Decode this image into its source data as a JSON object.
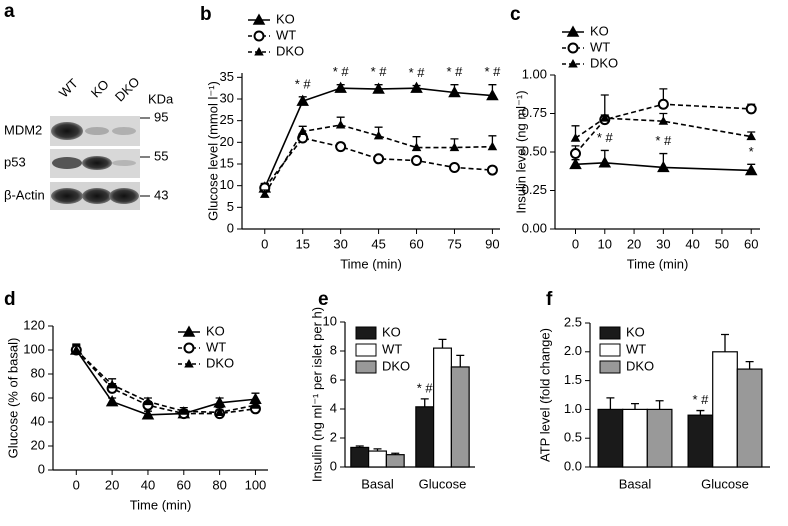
{
  "blot": {
    "panel_label": "a",
    "lanes": [
      "WT",
      "KO",
      "DKO"
    ],
    "unit": "KDa",
    "rows": [
      {
        "name": "MDM2",
        "size": "95"
      },
      {
        "name": "p53",
        "size": "55"
      },
      {
        "name": "β-Actin",
        "size": "43"
      }
    ]
  },
  "chart_data": [
    {
      "type": "line",
      "panel_label": "b",
      "x_label": "Time (min)",
      "y_label": "Glucose level (mmol l⁻¹)",
      "x": [
        0,
        15,
        30,
        45,
        60,
        75,
        90
      ],
      "xlim": [
        -9,
        93
      ],
      "xticks": [
        0,
        15,
        30,
        45,
        60,
        75,
        90
      ],
      "ylim": [
        0,
        36
      ],
      "yticks": [
        0,
        5,
        10,
        15,
        20,
        25,
        30,
        35
      ],
      "series": [
        {
          "name": "KO",
          "color": "#000000",
          "marker": "triangle",
          "dash": false,
          "values": [
            9.5,
            29.5,
            32.5,
            32.3,
            32.5,
            31.5,
            30.8
          ],
          "errors": [
            1,
            1,
            0.8,
            1,
            0.6,
            1.8,
            2.5
          ],
          "annotations": [
            null,
            "* #",
            "* #",
            "* #",
            "* #",
            "* #",
            "* #"
          ]
        },
        {
          "name": "WT",
          "color": "#000000",
          "marker": "circle",
          "dash": true,
          "values": [
            9.5,
            21,
            19,
            16.2,
            15.8,
            14.2,
            13.6
          ],
          "errors": [
            1,
            1,
            0.8,
            0.7,
            0.6,
            0.5,
            0.8
          ]
        },
        {
          "name": "DKO",
          "color": "#000000",
          "marker": "small-triangle",
          "dash": true,
          "values": [
            8,
            22.5,
            24,
            21.5,
            18.8,
            18.8,
            19
          ],
          "errors": [
            1,
            1.2,
            1.8,
            2,
            2.5,
            2,
            2.5
          ]
        }
      ]
    },
    {
      "type": "line",
      "panel_label": "c",
      "x_label": "Time (min)",
      "y_label": "Insulin level (ng ml⁻¹)",
      "x": [
        0,
        10,
        30,
        60
      ],
      "xlim": [
        -7,
        63
      ],
      "xticks": [
        0,
        10,
        20,
        30,
        40,
        50,
        60
      ],
      "ylim": [
        0,
        1
      ],
      "yticks": [
        {
          "value": 0,
          "label": "0.00"
        },
        0.25,
        {
          "value": 0.5,
          "label": "0.50"
        },
        0.75,
        {
          "value": 1,
          "label": "1.00"
        }
      ],
      "series": [
        {
          "name": "KO",
          "color": "#000000",
          "marker": "triangle",
          "dash": false,
          "values": [
            0.42,
            0.43,
            0.4,
            0.38
          ],
          "errors": [
            0.03,
            0.08,
            0.09,
            0.04
          ],
          "annotations": [
            null,
            "* #",
            "* #",
            "*"
          ]
        },
        {
          "name": "WT",
          "color": "#000000",
          "marker": "circle",
          "dash": true,
          "values": [
            0.49,
            0.71,
            0.81,
            0.78
          ],
          "errors": [
            0.05,
            0.03,
            0.1,
            0.03
          ]
        },
        {
          "name": "DKO",
          "color": "#000000",
          "marker": "small-triangle",
          "dash": true,
          "values": [
            0.59,
            0.72,
            0.7,
            0.6
          ],
          "errors": [
            0.08,
            0.15,
            0.05,
            0.03
          ]
        }
      ]
    },
    {
      "type": "line",
      "panel_label": "d",
      "x_label": "Time (min)",
      "y_label": "Glucose (% of basal)",
      "x": [
        0,
        20,
        40,
        60,
        80,
        100
      ],
      "xlim": [
        -13,
        107
      ],
      "xticks": [
        0,
        20,
        40,
        60,
        80,
        100
      ],
      "ylim": [
        0,
        120
      ],
      "yticks": [
        0,
        20,
        40,
        60,
        80,
        100,
        120
      ],
      "series": [
        {
          "name": "KO",
          "color": "#000000",
          "marker": "triangle",
          "dash": false,
          "values": [
            100,
            57,
            46,
            47,
            56,
            59
          ],
          "errors": [
            5,
            3,
            3,
            3,
            4,
            5
          ]
        },
        {
          "name": "WT",
          "color": "#000000",
          "marker": "circle",
          "dash": true,
          "values": [
            100,
            68,
            54,
            47,
            47,
            51
          ],
          "errors": [
            4,
            4,
            3,
            3,
            3,
            3
          ]
        },
        {
          "name": "DKO",
          "color": "#000000",
          "marker": "small-triangle",
          "dash": true,
          "values": [
            100,
            71,
            57,
            49,
            48,
            54
          ],
          "errors": [
            4,
            5,
            3,
            3,
            4,
            4
          ]
        }
      ]
    },
    {
      "type": "bar",
      "panel_label": "e",
      "y_label": "Insulin (ng ml⁻¹ per islet per h)",
      "categories": [
        "Basal",
        "Glucose"
      ],
      "ylim": [
        0,
        10
      ],
      "yticks": [
        0,
        2,
        4,
        6,
        8,
        10
      ],
      "series": [
        {
          "name": "KO",
          "color": "#1a1a1a",
          "values": [
            1.35,
            4.15
          ],
          "errors": [
            0.1,
            0.55
          ],
          "annotations": [
            null,
            "* #"
          ]
        },
        {
          "name": "WT",
          "color": "#ffffff",
          "values": [
            1.1,
            8.2
          ],
          "errors": [
            0.15,
            0.6
          ]
        },
        {
          "name": "DKO",
          "color": "#999999",
          "values": [
            0.85,
            6.9
          ],
          "errors": [
            0.1,
            0.8
          ]
        }
      ]
    },
    {
      "type": "bar",
      "panel_label": "f",
      "y_label": "ATP level (fold change)",
      "categories": [
        "Basal",
        "Glucose"
      ],
      "ylim": [
        0,
        2.5
      ],
      "yticks": [
        {
          "value": 0,
          "label": "0.0"
        },
        0.5,
        {
          "value": 1,
          "label": "1.0"
        },
        1.5,
        {
          "value": 2,
          "label": "2.0"
        },
        2.5
      ],
      "series": [
        {
          "name": "KO",
          "color": "#1a1a1a",
          "values": [
            1,
            0.9
          ],
          "errors": [
            0.2,
            0.08
          ],
          "annotations": [
            null,
            "* #"
          ]
        },
        {
          "name": "WT",
          "color": "#ffffff",
          "values": [
            1,
            2
          ],
          "errors": [
            0.1,
            0.3
          ]
        },
        {
          "name": "DKO",
          "color": "#999999",
          "values": [
            1,
            1.7
          ],
          "errors": [
            0.15,
            0.13
          ]
        }
      ]
    }
  ]
}
